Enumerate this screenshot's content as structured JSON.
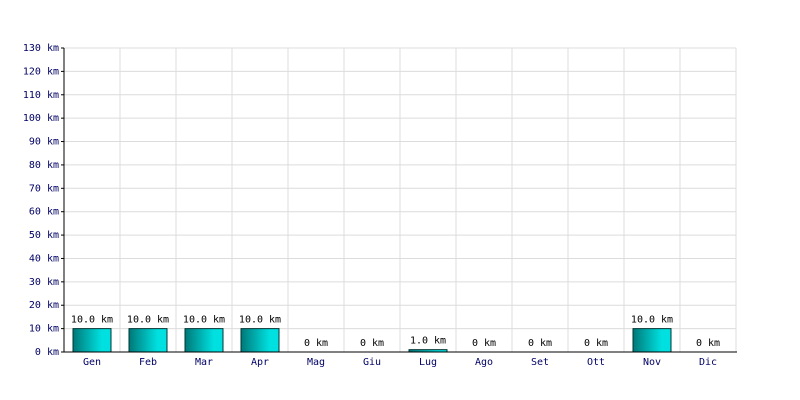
{
  "chart_data": {
    "type": "bar",
    "categories": [
      "Gen",
      "Feb",
      "Mar",
      "Apr",
      "Mag",
      "Giu",
      "Lug",
      "Ago",
      "Set",
      "Ott",
      "Nov",
      "Dic"
    ],
    "values": [
      10,
      10,
      10,
      10,
      0,
      0,
      1,
      0,
      0,
      0,
      10,
      0
    ],
    "value_labels": [
      "10.0 km",
      "10.0 km",
      "10.0 km",
      "10.0 km",
      "0 km",
      "0 km",
      "1.0 km",
      "0 km",
      "0 km",
      "0 km",
      "10.0 km",
      "0 km"
    ],
    "color": "#00e0e0",
    "ylim": [
      0,
      130
    ],
    "yticks": [
      {
        "value": 0,
        "label": "0 km"
      },
      {
        "value": 10,
        "label": "10 km"
      },
      {
        "value": 20,
        "label": "20 km"
      },
      {
        "value": 30,
        "label": "30 km"
      },
      {
        "value": 40,
        "label": "40 km"
      },
      {
        "value": 50,
        "label": "50 km"
      },
      {
        "value": 60,
        "label": "60 km"
      },
      {
        "value": 70,
        "label": "70 km"
      },
      {
        "value": 80,
        "label": "80 km"
      },
      {
        "value": 90,
        "label": "90 km"
      },
      {
        "value": 100,
        "label": "100 km"
      },
      {
        "value": 110,
        "label": "110 km"
      },
      {
        "value": 120,
        "label": "120 km"
      },
      {
        "value": 130,
        "label": "130 km"
      }
    ],
    "grid": true
  }
}
